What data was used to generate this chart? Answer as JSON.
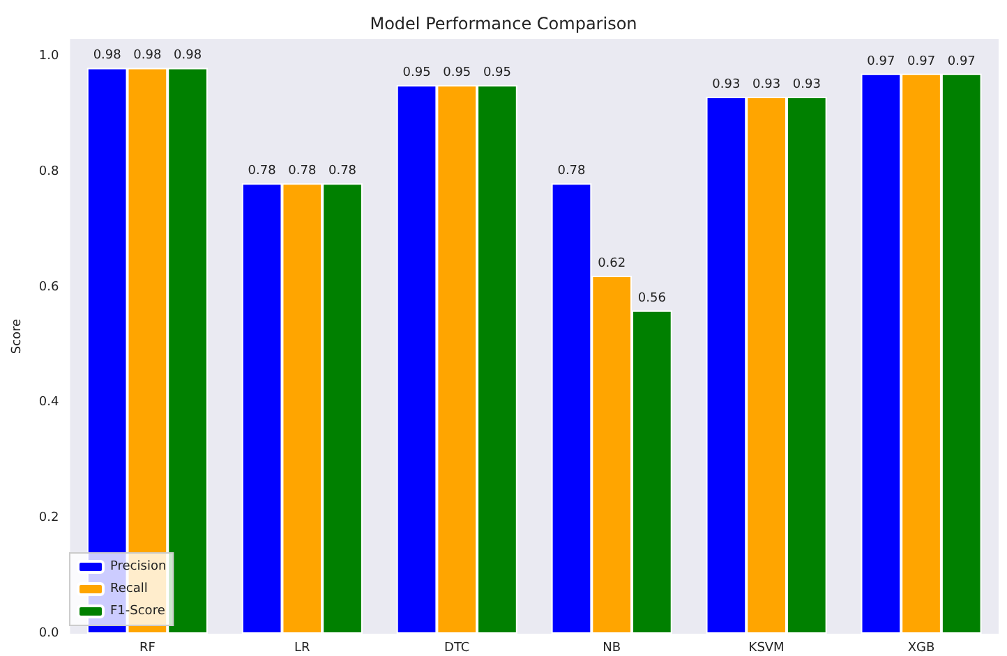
{
  "chart_data": {
    "type": "bar",
    "title": "Model Performance Comparison",
    "ylabel": "Score",
    "categories": [
      "RF",
      "LR",
      "DTC",
      "NB",
      "KSVM",
      "XGB"
    ],
    "series": [
      {
        "name": "Precision",
        "color": "#0000ff",
        "values": [
          0.98,
          0.78,
          0.95,
          0.78,
          0.93,
          0.97
        ]
      },
      {
        "name": "Recall",
        "color": "#ffa500",
        "values": [
          0.98,
          0.78,
          0.95,
          0.62,
          0.93,
          0.97
        ]
      },
      {
        "name": "F1-Score",
        "color": "#008000",
        "values": [
          0.98,
          0.78,
          0.95,
          0.56,
          0.93,
          0.97
        ]
      }
    ],
    "ylim": [
      0,
      1.03
    ],
    "yticks": [
      {
        "value": 0,
        "label": "0.0"
      },
      0.2,
      0.4,
      0.6,
      0.8,
      {
        "value": 1,
        "label": "1.0"
      }
    ],
    "data_labels": true,
    "grid": false,
    "legend": "bottom left"
  }
}
